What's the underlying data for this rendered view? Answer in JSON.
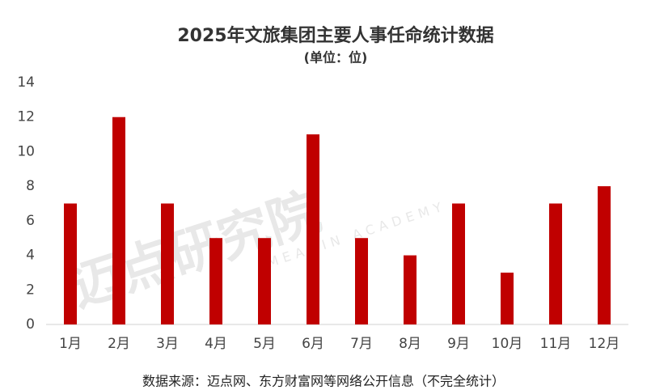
{
  "chart_data": {
    "type": "bar",
    "title": "2025年文旅集团主要人事任命统计数据",
    "subtitle": "(单位：位)",
    "categories": [
      "1月",
      "2月",
      "3月",
      "4月",
      "5月",
      "6月",
      "7月",
      "8月",
      "9月",
      "10月",
      "11月",
      "12月"
    ],
    "values": [
      7,
      12,
      7,
      5,
      5,
      11,
      5,
      4,
      7,
      3,
      7,
      8
    ],
    "color": "#c00000",
    "ylim": [
      0,
      14
    ],
    "yticks": [
      0,
      2,
      4,
      6,
      8,
      10,
      12,
      14
    ],
    "grid": false,
    "watermark": "迈点研究院",
    "watermark_sub": "MEADIN ACADEMY",
    "source": "数据来源：迈点网、东方财富网等网络公开信息（不完全统计）"
  }
}
